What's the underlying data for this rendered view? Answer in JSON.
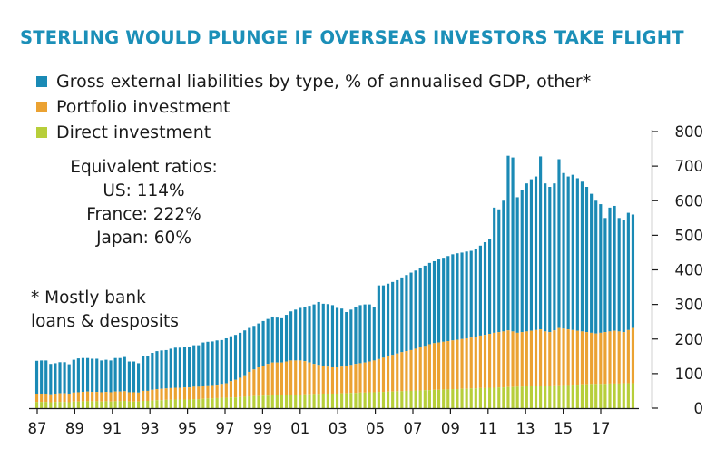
{
  "chart_data": {
    "type": "bar",
    "stacked": true,
    "title": "STERLING WOULD PLUNGE IF OVERSEAS INVESTORS TAKE FLIGHT",
    "x_tick_labels": [
      "87",
      "89",
      "91",
      "93",
      "95",
      "97",
      "99",
      "01",
      "03",
      "05",
      "07",
      "09",
      "11",
      "13",
      "15",
      "17"
    ],
    "y_ticks": [
      "0",
      "100",
      "200",
      "300",
      "400",
      "500",
      "600",
      "700",
      "800"
    ],
    "ylim": [
      0,
      800
    ],
    "series": [
      {
        "name": "Direct investment",
        "color": "#b7ce3a"
      },
      {
        "name": "Portfolio investment",
        "color": "#eba232"
      },
      {
        "name": "Gross external liabilities by type, % of annualised GDP, other*",
        "color": "#1a8ab5"
      }
    ],
    "totals": [
      137,
      138,
      138,
      128,
      130,
      133,
      133,
      127,
      140,
      144,
      145,
      145,
      143,
      143,
      138,
      140,
      138,
      145,
      145,
      148,
      135,
      135,
      130,
      150,
      150,
      160,
      165,
      167,
      168,
      172,
      175,
      175,
      178,
      177,
      182,
      182,
      190,
      192,
      193,
      196,
      197,
      202,
      208,
      212,
      218,
      225,
      232,
      238,
      245,
      252,
      258,
      265,
      262,
      260,
      270,
      280,
      285,
      290,
      293,
      296,
      300,
      307,
      302,
      301,
      298,
      290,
      288,
      278,
      285,
      292,
      298,
      300,
      300,
      292,
      355,
      355,
      360,
      365,
      370,
      378,
      385,
      392,
      398,
      405,
      412,
      420,
      425,
      430,
      435,
      440,
      445,
      448,
      450,
      453,
      455,
      460,
      470,
      480,
      490,
      580,
      575,
      600,
      730,
      725,
      610,
      630,
      650,
      662,
      670,
      728,
      650,
      640,
      650,
      720,
      680,
      670,
      675,
      665,
      655,
      640,
      620,
      600,
      590,
      550,
      580,
      585,
      550,
      545,
      565,
      560
    ],
    "portfolio_top": [
      42,
      42,
      42,
      40,
      42,
      43,
      43,
      42,
      45,
      46,
      47,
      48,
      47,
      47,
      46,
      47,
      46,
      48,
      48,
      49,
      46,
      46,
      45,
      50,
      50,
      53,
      55,
      56,
      57,
      58,
      59,
      59,
      60,
      60,
      62,
      62,
      65,
      66,
      67,
      68,
      70,
      72,
      78,
      82,
      88,
      95,
      105,
      112,
      118,
      122,
      128,
      132,
      132,
      132,
      135,
      138,
      138,
      138,
      136,
      132,
      128,
      125,
      122,
      120,
      118,
      118,
      120,
      122,
      125,
      128,
      130,
      132,
      135,
      138,
      142,
      146,
      150,
      154,
      158,
      162,
      165,
      168,
      172,
      176,
      180,
      185,
      188,
      190,
      192,
      194,
      196,
      198,
      200,
      202,
      204,
      206,
      210,
      212,
      215,
      218,
      220,
      222,
      225,
      222,
      218,
      220,
      222,
      224,
      226,
      228,
      222,
      220,
      225,
      232,
      230,
      228,
      226,
      224,
      222,
      220,
      218,
      216,
      218,
      220,
      222,
      224,
      222,
      220,
      226,
      232
    ],
    "direct_top": [
      18,
      18,
      18,
      17,
      18,
      18,
      18,
      17,
      19,
      19,
      20,
      20,
      20,
      20,
      19,
      20,
      19,
      20,
      20,
      21,
      19,
      19,
      19,
      21,
      21,
      22,
      23,
      23,
      24,
      24,
      25,
      25,
      25,
      25,
      26,
      26,
      27,
      28,
      28,
      29,
      30,
      30,
      31,
      31,
      32,
      33,
      34,
      35,
      35,
      36,
      36,
      37,
      37,
      37,
      38,
      38,
      39,
      39,
      40,
      40,
      41,
      41,
      42,
      42,
      42,
      42,
      43,
      43,
      44,
      44,
      45,
      45,
      46,
      46,
      47,
      47,
      48,
      48,
      49,
      49,
      50,
      50,
      51,
      51,
      52,
      52,
      53,
      53,
      54,
      54,
      55,
      55,
      56,
      56,
      57,
      57,
      58,
      58,
      59,
      59,
      60,
      60,
      61,
      61,
      62,
      62,
      63,
      63,
      64,
      64,
      65,
      65,
      66,
      66,
      67,
      67,
      68,
      68,
      69,
      69,
      70,
      70,
      70,
      70,
      71,
      71,
      71,
      72,
      72,
      72
    ]
  },
  "notes": {
    "ratios_heading": "Equivalent ratios:",
    "ratios": [
      "US: 114%",
      "France: 222%",
      "Japan: 60%"
    ],
    "bank": [
      "* Mostly bank",
      "loans & desposits"
    ]
  }
}
